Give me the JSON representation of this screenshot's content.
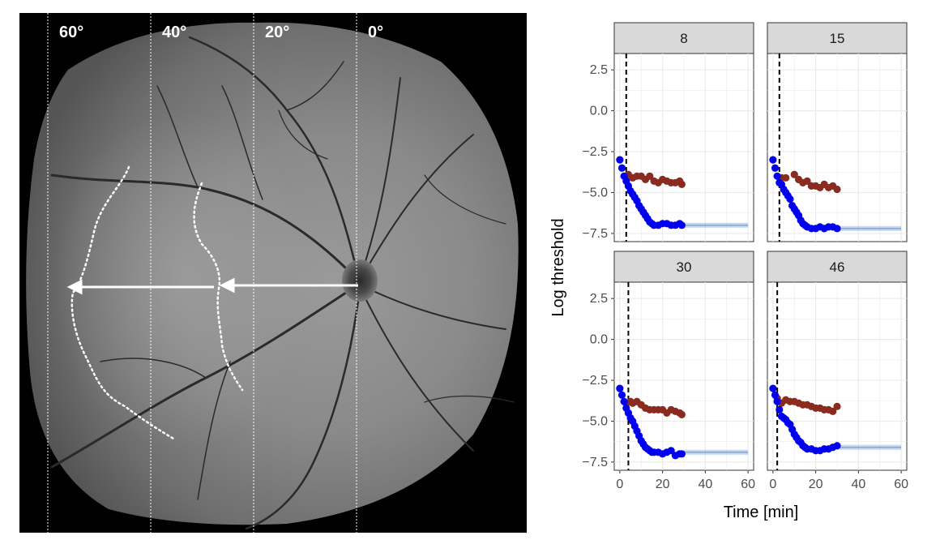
{
  "fundus_image": {
    "degree_labels": [
      "60°",
      "40°",
      "20°",
      "0°"
    ]
  },
  "chart_data": {
    "type": "scatter",
    "facet_by": "panel",
    "facets": [
      "8",
      "15",
      "30",
      "46"
    ],
    "xlabel": "Time [min]",
    "ylabel": "Log threshold",
    "xlim": [
      0,
      60
    ],
    "ylim": [
      -8,
      3.5
    ],
    "x_ticks": [
      0,
      20,
      40,
      60
    ],
    "x_tick_labels": [
      "0",
      "20",
      "40",
      "60"
    ],
    "y_ticks": [
      2.5,
      0,
      -2.5,
      -5,
      -7.5
    ],
    "y_tick_labels": [
      "2.5",
      "0.0",
      "−2.5",
      "−5.0",
      "−7.5"
    ],
    "grid": true,
    "colors": {
      "blue": "#0000ee",
      "red": "#8b2a1e",
      "fit": "#7fa9d6",
      "strip": "#d9d9d9"
    },
    "panels": [
      {
        "label": "8",
        "vline_x": 3,
        "blue_x": [
          0,
          1,
          2,
          3,
          4,
          5,
          6,
          7,
          8,
          9,
          10,
          11,
          12,
          13,
          14,
          15,
          16,
          18,
          20,
          22,
          24,
          26,
          28,
          29
        ],
        "blue_y": [
          -3.0,
          -3.5,
          -4.0,
          -4.3,
          -4.6,
          -4.9,
          -5.1,
          -5.3,
          -5.5,
          -5.8,
          -6.0,
          -6.2,
          -6.4,
          -6.6,
          -6.8,
          -6.9,
          -7.0,
          -7.0,
          -6.9,
          -6.9,
          -7.0,
          -7.0,
          -6.9,
          -7.0
        ],
        "red_x": [
          4,
          6,
          8,
          10,
          12,
          14,
          16,
          18,
          20,
          22,
          24,
          26,
          28,
          29
        ],
        "red_y": [
          -3.9,
          -4.1,
          -4.0,
          -4.0,
          -4.2,
          -4.0,
          -4.3,
          -4.4,
          -4.2,
          -4.3,
          -4.4,
          -4.4,
          -4.3,
          -4.5
        ],
        "fit_x": [
          30,
          60
        ],
        "fit_y": [
          -7.0,
          -7.0
        ]
      },
      {
        "label": "15",
        "vline_x": 3,
        "blue_x": [
          0,
          1,
          2,
          3,
          4,
          5,
          6,
          7,
          8,
          9,
          10,
          11,
          12,
          13,
          14,
          15,
          16,
          18,
          20,
          22,
          24,
          26,
          28,
          30
        ],
        "blue_y": [
          -3.0,
          -3.5,
          -4.0,
          -4.4,
          -4.5,
          -4.8,
          -5.0,
          -5.2,
          -5.4,
          -5.8,
          -6.0,
          -6.2,
          -6.4,
          -6.7,
          -6.9,
          -7.0,
          -7.1,
          -7.2,
          -7.2,
          -7.1,
          -7.2,
          -7.1,
          -7.1,
          -7.2
        ],
        "red_x": [
          4,
          6,
          10,
          12,
          14,
          16,
          18,
          20,
          22,
          24,
          26,
          28,
          30
        ],
        "red_y": [
          -4.1,
          -4.1,
          -3.9,
          -4.2,
          -4.4,
          -4.3,
          -4.6,
          -4.6,
          -4.7,
          -4.5,
          -4.7,
          -4.6,
          -4.8
        ],
        "fit_x": [
          30,
          60
        ],
        "fit_y": [
          -7.2,
          -7.2
        ]
      },
      {
        "label": "30",
        "vline_x": 4,
        "blue_x": [
          0,
          1,
          2,
          3,
          4,
          5,
          6,
          7,
          8,
          9,
          10,
          11,
          12,
          13,
          14,
          15,
          16,
          18,
          20,
          22,
          24,
          26,
          28,
          29
        ],
        "blue_y": [
          -3.0,
          -3.4,
          -3.8,
          -4.2,
          -4.5,
          -4.8,
          -5.0,
          -5.3,
          -5.6,
          -5.9,
          -6.2,
          -6.4,
          -6.6,
          -6.7,
          -6.8,
          -6.9,
          -6.9,
          -6.9,
          -7.0,
          -6.9,
          -6.8,
          -7.1,
          -7.0,
          -7.0
        ],
        "red_x": [
          3,
          5,
          6,
          8,
          10,
          12,
          14,
          16,
          18,
          20,
          22,
          24,
          26,
          28,
          29
        ],
        "red_y": [
          -3.9,
          -3.8,
          -3.9,
          -3.8,
          -4.0,
          -4.2,
          -4.3,
          -4.3,
          -4.3,
          -4.3,
          -4.5,
          -4.3,
          -4.4,
          -4.5,
          -4.6
        ],
        "fit_x": [
          30,
          60
        ],
        "fit_y": [
          -6.9,
          -6.9
        ]
      },
      {
        "label": "46",
        "vline_x": 2,
        "blue_x": [
          0,
          1,
          2,
          3,
          4,
          5,
          6,
          7,
          8,
          9,
          10,
          11,
          12,
          13,
          14,
          15,
          16,
          18,
          20,
          22,
          24,
          26,
          28,
          30
        ],
        "blue_y": [
          -3.0,
          -3.4,
          -3.8,
          -4.3,
          -4.7,
          -4.8,
          -4.9,
          -5.1,
          -5.2,
          -5.5,
          -5.8,
          -6.0,
          -6.2,
          -6.3,
          -6.5,
          -6.6,
          -6.7,
          -6.7,
          -6.8,
          -6.8,
          -6.7,
          -6.7,
          -6.6,
          -6.5
        ],
        "red_x": [
          2,
          4,
          6,
          8,
          10,
          12,
          14,
          16,
          18,
          20,
          22,
          24,
          26,
          28,
          30
        ],
        "red_y": [
          -3.6,
          -3.9,
          -3.7,
          -3.8,
          -3.8,
          -3.9,
          -4.0,
          -4.0,
          -4.1,
          -4.2,
          -4.2,
          -4.3,
          -4.3,
          -4.4,
          -4.1
        ],
        "fit_x": [
          30,
          60
        ],
        "fit_y": [
          -6.6,
          -6.6
        ]
      }
    ]
  }
}
